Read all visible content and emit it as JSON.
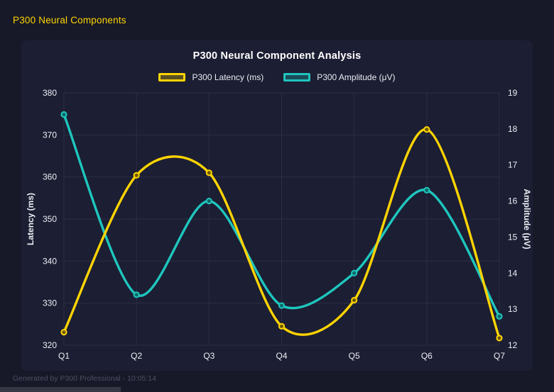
{
  "header": {
    "title": "P300 Neural Components"
  },
  "footer": {
    "text": "Generated by P300 Professional - 10:05:14"
  },
  "colors": {
    "page_bg": "#171928",
    "panel_bg": "#1c1e33",
    "grid": "#2b2e46",
    "tick_text": "#edeff5",
    "title_text": "#ffffff",
    "header_text": "#ffd400",
    "footer_text": "#4b4f63",
    "scrollbar": "#363945"
  },
  "chart_data": {
    "type": "line",
    "title": "P300 Neural Component Analysis",
    "categories": [
      "Q1",
      "Q2",
      "Q3",
      "Q4",
      "Q5",
      "Q6",
      "Q7"
    ],
    "series": [
      {
        "name": "P300 Latency (ms)",
        "axis": "left",
        "color": "#ffd400",
        "point_fill": "#6e5c08",
        "swatch_fill": "rgba(255,212,0,0.28)",
        "values": [
          323.1,
          360.4,
          361.0,
          324.5,
          330.7,
          371.3,
          321.7
        ]
      },
      {
        "name": "P300 Amplitude (μV)",
        "axis": "right",
        "color": "#1ec6be",
        "point_fill": "#0e6a66",
        "swatch_fill": "rgba(30,198,190,0.28)",
        "values": [
          18.4,
          13.4,
          16.0,
          13.1,
          14.0,
          16.3,
          12.8
        ]
      }
    ],
    "left_axis": {
      "label": "Latency (ms)",
      "min": 320,
      "max": 380,
      "ticks": [
        320,
        330,
        340,
        350,
        360,
        370,
        380
      ]
    },
    "right_axis": {
      "label": "Amplitude (μV)",
      "min": 12,
      "max": 19,
      "ticks": [
        12,
        13,
        14,
        15,
        16,
        17,
        18,
        19
      ]
    },
    "grid": true,
    "smooth": true,
    "legend_position": "top"
  }
}
